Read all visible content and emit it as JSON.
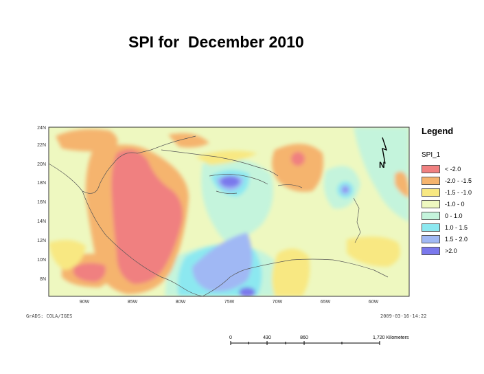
{
  "title": "SPI for  December 2010",
  "map": {
    "lat_labels": [
      "24N",
      "22N",
      "20N",
      "18N",
      "16N",
      "14N",
      "12N",
      "10N",
      "8N"
    ],
    "lon_labels": [
      "90W",
      "85W",
      "80W",
      "75W",
      "70W",
      "65W",
      "60W"
    ],
    "north_arrow_label": "N"
  },
  "legend": {
    "title": "Legend",
    "layer": "SPI_1",
    "items": [
      {
        "label": "< -2.0",
        "color": "#f08080"
      },
      {
        "label": "-2.0 - -1.5",
        "color": "#f5b46e"
      },
      {
        "label": "-1.5 -  -1.0",
        "color": "#f8e882"
      },
      {
        "label": "-1.0 - 0",
        "color": "#eef8c0"
      },
      {
        "label": "0 - 1.0",
        "color": "#c4f4dc"
      },
      {
        "label": "1.0 - 1.5",
        "color": "#8ce8f0"
      },
      {
        "label": "1.5 - 2.0",
        "color": "#a0b8f4"
      },
      {
        "label": ">2.0",
        "color": "#7a78ec"
      }
    ]
  },
  "footer": {
    "left": "GrADS: COLA/IGES",
    "right": "2009-03-16-14:22"
  },
  "scale": {
    "labels": [
      "0",
      "430",
      "860",
      "1,720 Kilometers"
    ]
  }
}
